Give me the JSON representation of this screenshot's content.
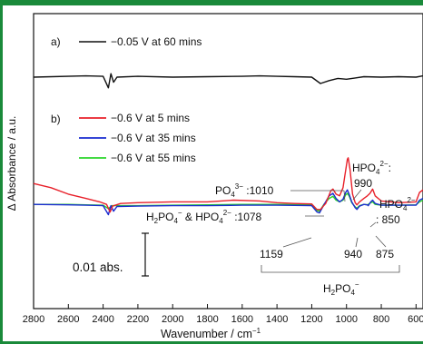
{
  "chart_data": {
    "type": "line",
    "xlabel": "Wavenumber / cm",
    "xlabel_sup": "−1",
    "ylabel": "Δ Absorbance / a.u.",
    "xlim": [
      2800,
      560
    ],
    "x_ticks": [
      2800,
      2600,
      2400,
      2200,
      2000,
      1800,
      1600,
      1400,
      1200,
      1000,
      800,
      600
    ],
    "panels": [
      {
        "label": "a)",
        "series": [
          {
            "name": "−0.05 V at 60 mins",
            "color": "#111111",
            "points": [
              [
                2800,
                0
              ],
              [
                2500,
                0.0003
              ],
              [
                2400,
                0.0002
              ],
              [
                2370,
                -0.0025
              ],
              [
                2355,
                0.0008
              ],
              [
                2340,
                -0.0012
              ],
              [
                2320,
                0
              ],
              [
                2200,
                0.0002
              ],
              [
                2000,
                0
              ],
              [
                1800,
                0.0001
              ],
              [
                1600,
                0.0002
              ],
              [
                1500,
                0.0003
              ],
              [
                1400,
                0.0002
              ],
              [
                1300,
                0.0001
              ],
              [
                1200,
                0
              ],
              [
                1150,
                -0.0015
              ],
              [
                1100,
                -0.0008
              ],
              [
                1050,
                -0.0003
              ],
              [
                1000,
                -0.0005
              ],
              [
                950,
                -0.0002
              ],
              [
                900,
                0.0001
              ],
              [
                800,
                0
              ],
              [
                700,
                0.0001
              ],
              [
                600,
                0
              ],
              [
                560,
                0.0003
              ]
            ]
          }
        ]
      },
      {
        "label": "b)",
        "series": [
          {
            "name": "−0.6 V at 5 mins",
            "color": "#e8202a",
            "points": [
              [
                2800,
                0.0055
              ],
              [
                2700,
                0.0045
              ],
              [
                2600,
                0.003
              ],
              [
                2500,
                0.002
              ],
              [
                2420,
                0.0012
              ],
              [
                2380,
                0.0006
              ],
              [
                2360,
                -0.0012
              ],
              [
                2345,
                0.0002
              ],
              [
                2300,
                0.0008
              ],
              [
                2200,
                0.001
              ],
              [
                2000,
                0.0012
              ],
              [
                1800,
                0.0012
              ],
              [
                1650,
                0.0016
              ],
              [
                1500,
                0.0014
              ],
              [
                1400,
                0.001
              ],
              [
                1300,
                0.0008
              ],
              [
                1200,
                0.0007
              ],
              [
                1170,
                -0.0006
              ],
              [
                1150,
                -0.0006
              ],
              [
                1120,
                0.0008
              ],
              [
                1090,
                0.0038
              ],
              [
                1078,
                0.0042
              ],
              [
                1060,
                0.003
              ],
              [
                1040,
                0.0026
              ],
              [
                1020,
                0.0045
              ],
              [
                1010,
                0.0072
              ],
              [
                995,
                0.0112
              ],
              [
                990,
                0.0115
              ],
              [
                980,
                0.0088
              ],
              [
                965,
                0.003
              ],
              [
                950,
                0.001
              ],
              [
                940,
                0.0005
              ],
              [
                925,
                0.0012
              ],
              [
                900,
                0.002
              ],
              [
                880,
                0.0026
              ],
              [
                865,
                0.0032
              ],
              [
                850,
                0.0042
              ],
              [
                835,
                0.0026
              ],
              [
                800,
                0.0014
              ],
              [
                700,
                0.001
              ],
              [
                600,
                0.0012
              ],
              [
                580,
                0.0034
              ],
              [
                560,
                0.004
              ]
            ]
          },
          {
            "name": "−0.6 V at 35 mins",
            "color": "#1a2bd0",
            "points": [
              [
                2800,
                0.0006
              ],
              [
                2600,
                0.0005
              ],
              [
                2500,
                0.0004
              ],
              [
                2400,
                0.0003
              ],
              [
                2370,
                -0.0018
              ],
              [
                2355,
                0.0003
              ],
              [
                2340,
                -0.001
              ],
              [
                2320,
                0.0001
              ],
              [
                2200,
                0.0002
              ],
              [
                2000,
                0.0003
              ],
              [
                1800,
                0.0003
              ],
              [
                1600,
                0.0004
              ],
              [
                1400,
                0.0004
              ],
              [
                1200,
                0.0003
              ],
              [
                1170,
                -0.0012
              ],
              [
                1155,
                -0.0014
              ],
              [
                1130,
                0.0005
              ],
              [
                1100,
                0.0026
              ],
              [
                1078,
                0.0032
              ],
              [
                1060,
                0.002
              ],
              [
                1040,
                0.0012
              ],
              [
                1020,
                0.0018
              ],
              [
                1005,
                0.0034
              ],
              [
                995,
                0.004
              ],
              [
                985,
                0.003
              ],
              [
                970,
                0.0012
              ],
              [
                950,
                -0.0002
              ],
              [
                940,
                -0.0006
              ],
              [
                925,
                0.0002
              ],
              [
                900,
                0.0006
              ],
              [
                880,
                0.0005
              ],
              [
                875,
                0.0003
              ],
              [
                860,
                0.0012
              ],
              [
                850,
                0.0016
              ],
              [
                835,
                0.0008
              ],
              [
                800,
                0.0004
              ],
              [
                700,
                0.0004
              ],
              [
                600,
                0.0004
              ],
              [
                580,
                0.0016
              ],
              [
                560,
                0.002
              ]
            ]
          },
          {
            "name": "−0.6 V at 55 mins",
            "color": "#2ad42a",
            "points": [
              [
                2800,
                0.0006
              ],
              [
                2600,
                0.0006
              ],
              [
                2500,
                0.0005
              ],
              [
                2400,
                0.0004
              ],
              [
                2370,
                -0.0004
              ],
              [
                2350,
                0.0003
              ],
              [
                2200,
                0.0003
              ],
              [
                2000,
                0.0004
              ],
              [
                1800,
                0.0005
              ],
              [
                1600,
                0.0006
              ],
              [
                1400,
                0.0006
              ],
              [
                1200,
                0.0005
              ],
              [
                1170,
                -0.0008
              ],
              [
                1155,
                -0.001
              ],
              [
                1130,
                0.0006
              ],
              [
                1100,
                0.002
              ],
              [
                1078,
                0.0025
              ],
              [
                1060,
                0.0016
              ],
              [
                1040,
                0.0012
              ],
              [
                1020,
                0.0016
              ],
              [
                1005,
                0.0028
              ],
              [
                995,
                0.0032
              ],
              [
                985,
                0.0026
              ],
              [
                970,
                0.001
              ],
              [
                950,
                0
              ],
              [
                940,
                -0.0003
              ],
              [
                925,
                0.0003
              ],
              [
                900,
                0.0006
              ],
              [
                880,
                0.0005
              ],
              [
                860,
                0.001
              ],
              [
                850,
                0.0012
              ],
              [
                835,
                0.0006
              ],
              [
                800,
                0.0004
              ],
              [
                700,
                0.0004
              ],
              [
                600,
                0.0005
              ],
              [
                580,
                0.0012
              ],
              [
                560,
                0.0016
              ]
            ]
          }
        ]
      }
    ],
    "annotations": {
      "po4": "PO",
      "po4_sub": "4",
      "po4_sup": "3−",
      "po4_value": " :1010",
      "hpo4_top": "HPO",
      "hpo4_top_sub": "4",
      "hpo4_top_sup": "2−",
      "hpo4_top_colon": ":",
      "v990": "990",
      "h2po4_a": "H",
      "h2po4_a_sub1": "2",
      "h2po4_a_mid": "PO",
      "h2po4_a_sub2": "4",
      "h2po4_a_sup": "−",
      "amp": " & HPO",
      "amp_sub": "4",
      "amp_sup": "2−",
      "v1078": " :1078",
      "hpo4_right": "HPO",
      "hpo4_right_sub": "4",
      "hpo4_right_sup": "2−",
      "v850": ": 850",
      "v1159": "1159",
      "v940": "940",
      "v875": "875",
      "h2po4_b": "H",
      "h2po4_b_sub1": "2",
      "h2po4_b_mid": "PO",
      "h2po4_b_sub2": "4",
      "h2po4_b_sup": "−",
      "scale_label": "0.01 abs."
    },
    "scale_bar_value": 0.01,
    "grid": false
  }
}
